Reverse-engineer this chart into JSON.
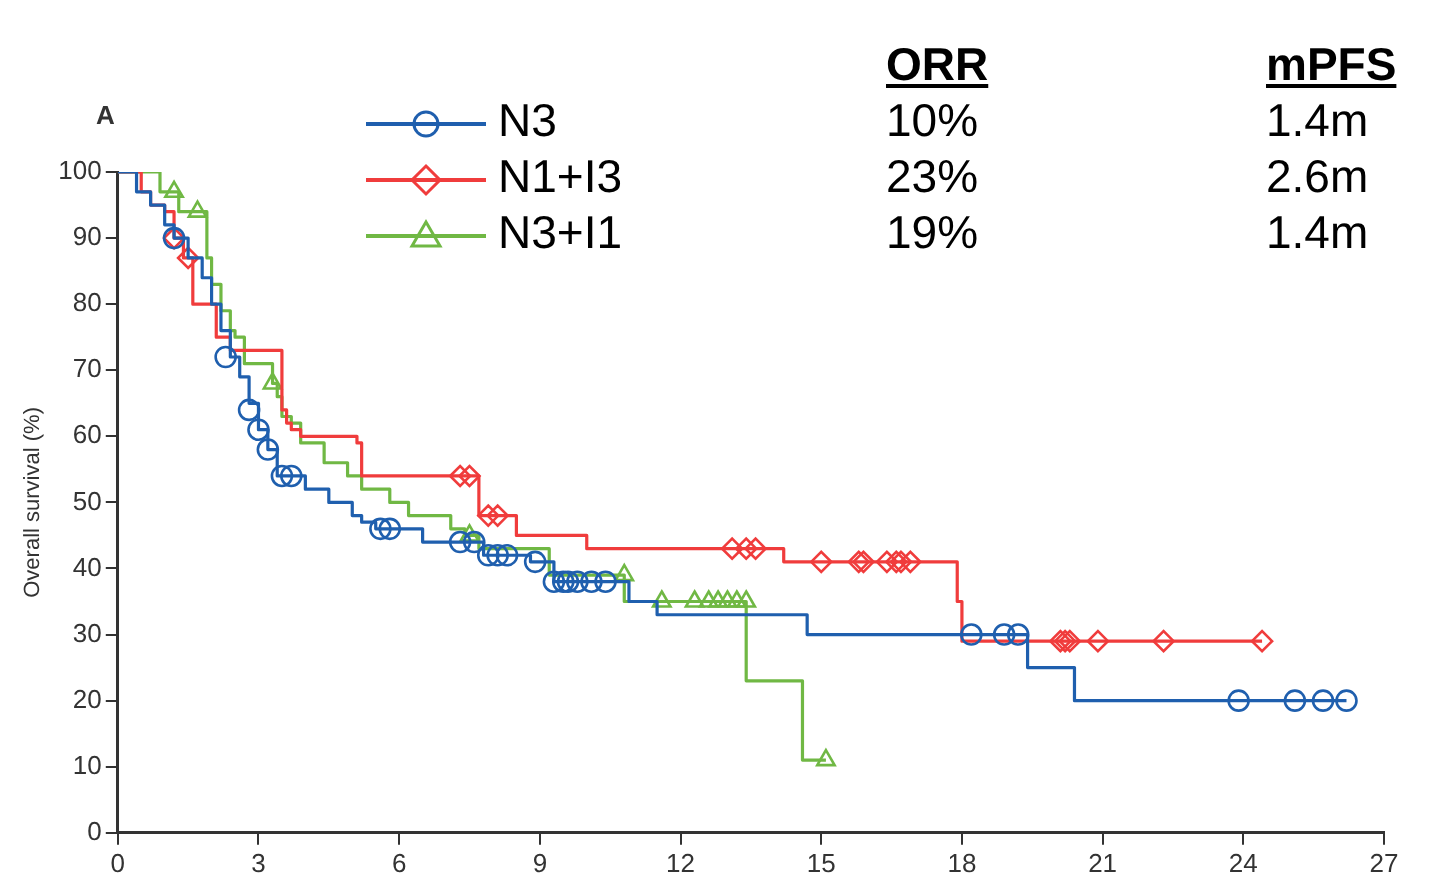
{
  "chart_data": {
    "type": "step",
    "ylabel": "Overall survival (%)",
    "xlim": [
      0,
      27
    ],
    "xticks": [
      0,
      3,
      6,
      9,
      12,
      15,
      18,
      21,
      24,
      27
    ],
    "ylim": [
      0,
      100
    ],
    "yticks": [
      0,
      10,
      20,
      30,
      40,
      50,
      60,
      70,
      80,
      90,
      100
    ],
    "grid": false,
    "legend": "top",
    "line_style": "solid",
    "annotations": [
      "A",
      "ORR",
      "mPFS",
      "10%",
      "1.4m",
      "23%",
      "2.6m",
      "19%",
      "1.4m"
    ],
    "series": [
      {
        "name": "N3",
        "color": "#1f5fae",
        "x": [
          0,
          0.4,
          0.7,
          1.0,
          1.2,
          1.5,
          1.8,
          2.0,
          2.2,
          2.4,
          2.6,
          2.8,
          3.0,
          3.2,
          3.4,
          4.0,
          4.5,
          5.0,
          5.2,
          5.5,
          6.5,
          7.8,
          8.8,
          9.3,
          10.9,
          11.5,
          14.7,
          19.4,
          20.4,
          26.2
        ],
        "values": [
          100,
          97,
          95,
          92,
          90,
          87,
          84,
          80,
          76,
          72,
          69,
          65,
          61,
          58,
          54,
          52,
          50,
          48,
          47,
          46,
          44,
          42,
          41,
          38,
          35,
          33,
          30,
          25,
          20,
          20
        ]
      },
      {
        "type": "scatter",
        "color": "#1f5fae",
        "marker": "circle",
        "x": [
          1.2,
          2.3,
          2.8,
          3.0,
          3.2,
          3.5,
          3.7,
          5.6,
          5.8,
          7.3,
          7.6,
          7.9,
          8.1,
          8.3,
          8.9,
          9.3,
          9.5,
          9.6,
          9.8,
          10.1,
          10.4,
          18.2,
          18.9,
          19.2,
          23.9,
          25.1,
          25.7,
          26.2
        ],
        "values": [
          90,
          72,
          64,
          61,
          58,
          54,
          54,
          46,
          46,
          44,
          44,
          42,
          42,
          42,
          41,
          38,
          38,
          38,
          38,
          38,
          38,
          30,
          30,
          30,
          20,
          20,
          20,
          20
        ]
      },
      {
        "name": "N1+I3",
        "color": "#f03c3c",
        "x": [
          0,
          0.5,
          0.7,
          1.0,
          1.2,
          1.4,
          1.6,
          2.1,
          2.4,
          3.5,
          3.6,
          3.7,
          3.9,
          5.1,
          5.2,
          7.7,
          8.5,
          10.0,
          14.2,
          17.9,
          18.0,
          24.4
        ],
        "values": [
          100,
          97,
          95,
          94,
          90,
          87,
          80,
          75,
          73,
          64,
          62,
          61,
          60,
          59,
          54,
          48,
          45,
          43,
          41,
          35,
          29,
          29
        ]
      },
      {
        "type": "scatter",
        "color": "#f03c3c",
        "marker": "diamond",
        "x": [
          1.2,
          1.5,
          7.3,
          7.5,
          7.9,
          8.1,
          13.1,
          13.4,
          13.6,
          15.0,
          15.8,
          15.9,
          16.4,
          16.6,
          16.7,
          16.9,
          20.1,
          20.2,
          20.3,
          20.9,
          22.3,
          24.4
        ],
        "values": [
          90,
          87,
          54,
          54,
          48,
          48,
          43,
          43,
          43,
          41,
          41,
          41,
          41,
          41,
          41,
          41,
          29,
          29,
          29,
          29,
          29,
          29
        ]
      },
      {
        "name": "N3+I1",
        "color": "#70b844",
        "x": [
          0,
          0.9,
          1.3,
          1.9,
          2.0,
          2.2,
          2.4,
          2.5,
          2.7,
          3.3,
          3.4,
          3.5,
          3.7,
          3.9,
          4.4,
          4.9,
          5.2,
          5.8,
          6.2,
          7.1,
          7.4,
          7.7,
          9.2,
          10.8,
          13.4,
          14.6,
          15.1
        ],
        "values": [
          100,
          97,
          94,
          87,
          83,
          79,
          76,
          75,
          71,
          68,
          66,
          63,
          62,
          59,
          56,
          54,
          52,
          50,
          48,
          46,
          45,
          43,
          39,
          35,
          23,
          11,
          11
        ]
      },
      {
        "type": "scatter",
        "color": "#70b844",
        "marker": "triangle",
        "x": [
          1.2,
          1.7,
          3.3,
          7.5,
          10.8,
          11.6,
          12.3,
          12.6,
          12.8,
          13.0,
          13.2,
          13.4,
          15.1
        ],
        "values": [
          97,
          94,
          68,
          45,
          39,
          35,
          35,
          35,
          35,
          35,
          35,
          35,
          11
        ]
      }
    ]
  }
}
